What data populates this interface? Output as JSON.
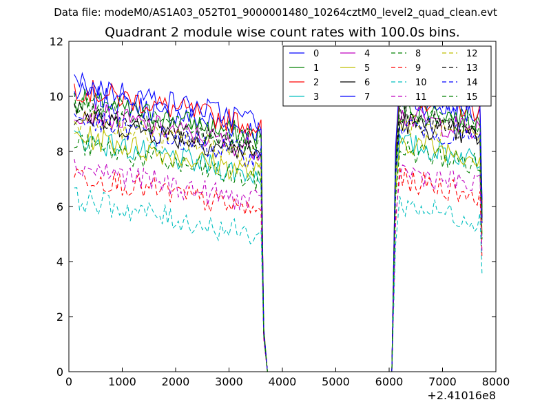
{
  "chart_data": {
    "type": "line",
    "suptitle": "Data file: modeM0/AS1A03_052T01_9000001480_10264cztM0_level2_quad_clean.evt",
    "title": "Quadrant 2 module wise count rates with 100.0s bins.",
    "xlabel": "",
    "ylabel": "",
    "x_offset_label": "+2.41016e8",
    "xlim": [
      0,
      8000
    ],
    "ylim": [
      0,
      12
    ],
    "xticks": [
      "0",
      "1000",
      "2000",
      "3000",
      "4000",
      "5000",
      "6000",
      "7000",
      "8000"
    ],
    "yticks": [
      "0",
      "2",
      "4",
      "6",
      "8",
      "10",
      "12"
    ],
    "legend_position": "top-right",
    "series": [
      {
        "name": "0",
        "color": "#0000ff",
        "style": "solid",
        "level": 9.2
      },
      {
        "name": "1",
        "color": "#008000",
        "style": "solid",
        "level": 9.0
      },
      {
        "name": "2",
        "color": "#ff0000",
        "style": "solid",
        "level": 9.4
      },
      {
        "name": "3",
        "color": "#00bfbf",
        "style": "solid",
        "level": 7.6
      },
      {
        "name": "4",
        "color": "#bf00bf",
        "style": "solid",
        "level": 8.6
      },
      {
        "name": "5",
        "color": "#bfbf00",
        "style": "solid",
        "level": 7.7
      },
      {
        "name": "6",
        "color": "#000000",
        "style": "solid",
        "level": 8.4
      },
      {
        "name": "7",
        "color": "#0000ff",
        "style": "solid",
        "level": 9.6
      },
      {
        "name": "8",
        "color": "#008000",
        "style": "dashed",
        "level": 7.4
      },
      {
        "name": "9",
        "color": "#ff0000",
        "style": "dashed",
        "level": 6.3
      },
      {
        "name": "10",
        "color": "#00bfbf",
        "style": "dashed",
        "level": 5.4
      },
      {
        "name": "11",
        "color": "#bf00bf",
        "style": "dashed",
        "level": 6.6
      },
      {
        "name": "12",
        "color": "#bfbf00",
        "style": "dashed",
        "level": 8.3
      },
      {
        "name": "13",
        "color": "#000000",
        "style": "dashed",
        "level": 8.6
      },
      {
        "name": "14",
        "color": "#0000ff",
        "style": "dashed",
        "level": 8.3
      },
      {
        "name": "15",
        "color": "#008000",
        "style": "dashed",
        "level": 8.8
      }
    ]
  }
}
